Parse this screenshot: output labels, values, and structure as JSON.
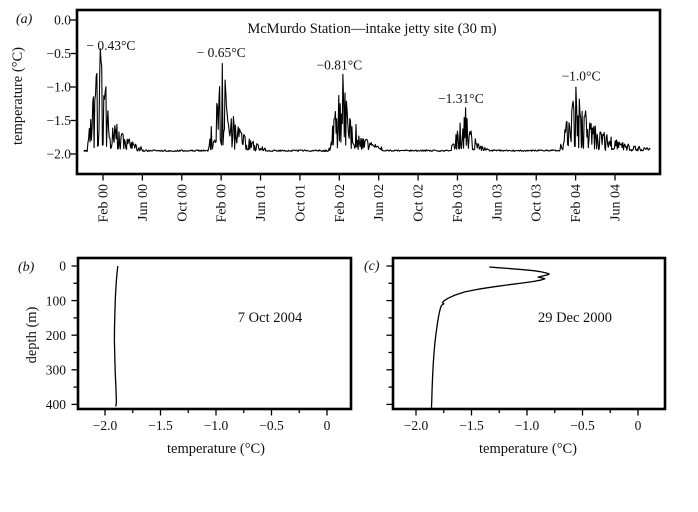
{
  "chart_data": [
    {
      "id": "a",
      "type": "line",
      "panel_tag": "(a)",
      "title": "McMurdo Station—intake jetty site (30 m)",
      "ylabel": "temperature (°C)",
      "ylim": [
        0.15,
        -2.3
      ],
      "y_tick_values": [
        0,
        -0.5,
        -1,
        -1.5,
        -2
      ],
      "y_tick_labels": [
        "0.0",
        "−0.5",
        "−1.0",
        "−1.5",
        "−2.0"
      ],
      "x_tick_labels": [
        "Feb 00",
        "Jun 00",
        "Oct 00",
        "Feb 00",
        "Jun 01",
        "Oct 01",
        "Feb 02",
        "Jun 02",
        "Oct 02",
        "Feb 03",
        "Jun 03",
        "Oct 03",
        "Feb 04",
        "Jun 04"
      ],
      "x_tick_months": [
        1,
        5,
        9,
        13,
        17,
        21,
        25,
        29,
        33,
        37,
        41,
        45,
        49,
        53
      ],
      "x_range_months": [
        -1.6,
        57.6
      ],
      "baseline_c": -1.95,
      "seasons": [
        {
          "peak_c": -0.43,
          "t_start": -0.6,
          "t_peak": 0.75,
          "t_end": 5.0
        },
        {
          "peak_c": -0.65,
          "t_start": 11.7,
          "t_peak": 13.15,
          "t_end": 17.5
        },
        {
          "peak_c": -0.81,
          "t_start": 23.9,
          "t_peak": 25.35,
          "t_end": 29.5
        },
        {
          "peak_c": -1.31,
          "t_start": 36.3,
          "t_peak": 37.85,
          "t_end": 40.3
        },
        {
          "peak_c": -1.0,
          "t_start": 47.4,
          "t_peak": 49.0,
          "t_end": 56.6
        }
      ],
      "annotations": [
        {
          "text": "− 0.43°C",
          "month": 1.8,
          "temp": -0.45
        },
        {
          "text": "− 0.65°C",
          "month": 13.0,
          "temp": -0.55
        },
        {
          "text": "−0.81°C",
          "month": 25.0,
          "temp": -0.74
        },
        {
          "text": "−1.31°C",
          "month": 37.35,
          "temp": -1.24
        },
        {
          "text": "−1.0°C",
          "month": 49.55,
          "temp": -0.9
        }
      ]
    },
    {
      "id": "b",
      "type": "line",
      "panel_tag": "(b)",
      "date_label": "7 Oct 2004",
      "xlabel": "temperature (°C)",
      "ylabel": "depth (m)",
      "xlim": [
        -2.23,
        0.22
      ],
      "ylim_depth": [
        -23,
        413
      ],
      "x_tick_values": [
        -2,
        -1.5,
        -1,
        -0.5,
        0
      ],
      "x_tick_labels": [
        "−2.0",
        "−1.5",
        "−1.0",
        "−0.5",
        "0"
      ],
      "x_minor_ticks": [
        -1.75,
        -1.25,
        -0.75,
        -0.25
      ],
      "y_tick_values": [
        0,
        100,
        200,
        300,
        400
      ],
      "y_tick_labels": [
        "0",
        "100",
        "200",
        "300",
        "400"
      ],
      "y_minor_ticks": [
        50,
        150,
        250,
        350
      ],
      "profile_temp_depth": [
        [
          -1.885,
          0
        ],
        [
          -1.888,
          10
        ],
        [
          -1.893,
          25
        ],
        [
          -1.898,
          45
        ],
        [
          -1.903,
          70
        ],
        [
          -1.906,
          90
        ],
        [
          -1.909,
          115
        ],
        [
          -1.912,
          145
        ],
        [
          -1.914,
          180
        ],
        [
          -1.915,
          215
        ],
        [
          -1.913,
          250
        ],
        [
          -1.91,
          285
        ],
        [
          -1.906,
          320
        ],
        [
          -1.902,
          350
        ],
        [
          -1.899,
          375
        ],
        [
          -1.897,
          392
        ],
        [
          -1.9,
          400
        ],
        [
          -1.904,
          406
        ]
      ]
    },
    {
      "id": "c",
      "type": "line",
      "panel_tag": "(c)",
      "date_label": "29 Dec 2000",
      "xlabel": "temperature (°C)",
      "ylabel": "",
      "xlim": [
        -2.21,
        0.24
      ],
      "ylim_depth": [
        -23,
        413
      ],
      "x_tick_values": [
        -2,
        -1.5,
        -1,
        -0.5,
        0
      ],
      "x_tick_labels": [
        "−2.0",
        "−1.5",
        "−1.0",
        "−0.5",
        "0"
      ],
      "x_minor_ticks": [
        -1.75,
        -1.25,
        -0.75,
        -0.25
      ],
      "y_tick_values": [
        0,
        100,
        200,
        300,
        400
      ],
      "y_tick_labels": [],
      "y_minor_ticks": [
        50,
        150,
        250,
        350
      ],
      "profile_temp_depth": [
        [
          -1.34,
          3
        ],
        [
          -1.26,
          5
        ],
        [
          -1.13,
          8
        ],
        [
          -1.02,
          11
        ],
        [
          -0.93,
          14
        ],
        [
          -0.87,
          17
        ],
        [
          -0.83,
          20
        ],
        [
          -0.8,
          23
        ],
        [
          -0.82,
          26
        ],
        [
          -0.86,
          29
        ],
        [
          -0.9,
          32
        ],
        [
          -0.87,
          34
        ],
        [
          -0.84,
          37
        ],
        [
          -0.88,
          41
        ],
        [
          -0.95,
          45
        ],
        [
          -1.04,
          49
        ],
        [
          -1.16,
          54
        ],
        [
          -1.3,
          60
        ],
        [
          -1.44,
          67
        ],
        [
          -1.56,
          75
        ],
        [
          -1.65,
          84
        ],
        [
          -1.71,
          93
        ],
        [
          -1.75,
          101
        ],
        [
          -1.76,
          106
        ],
        [
          -1.75,
          109
        ],
        [
          -1.77,
          114
        ],
        [
          -1.78,
          122
        ],
        [
          -1.79,
          135
        ],
        [
          -1.8,
          152
        ],
        [
          -1.81,
          172
        ],
        [
          -1.82,
          196
        ],
        [
          -1.83,
          222
        ],
        [
          -1.838,
          252
        ],
        [
          -1.845,
          285
        ],
        [
          -1.85,
          320
        ],
        [
          -1.855,
          355
        ],
        [
          -1.858,
          385
        ],
        [
          -1.86,
          410
        ]
      ]
    }
  ]
}
